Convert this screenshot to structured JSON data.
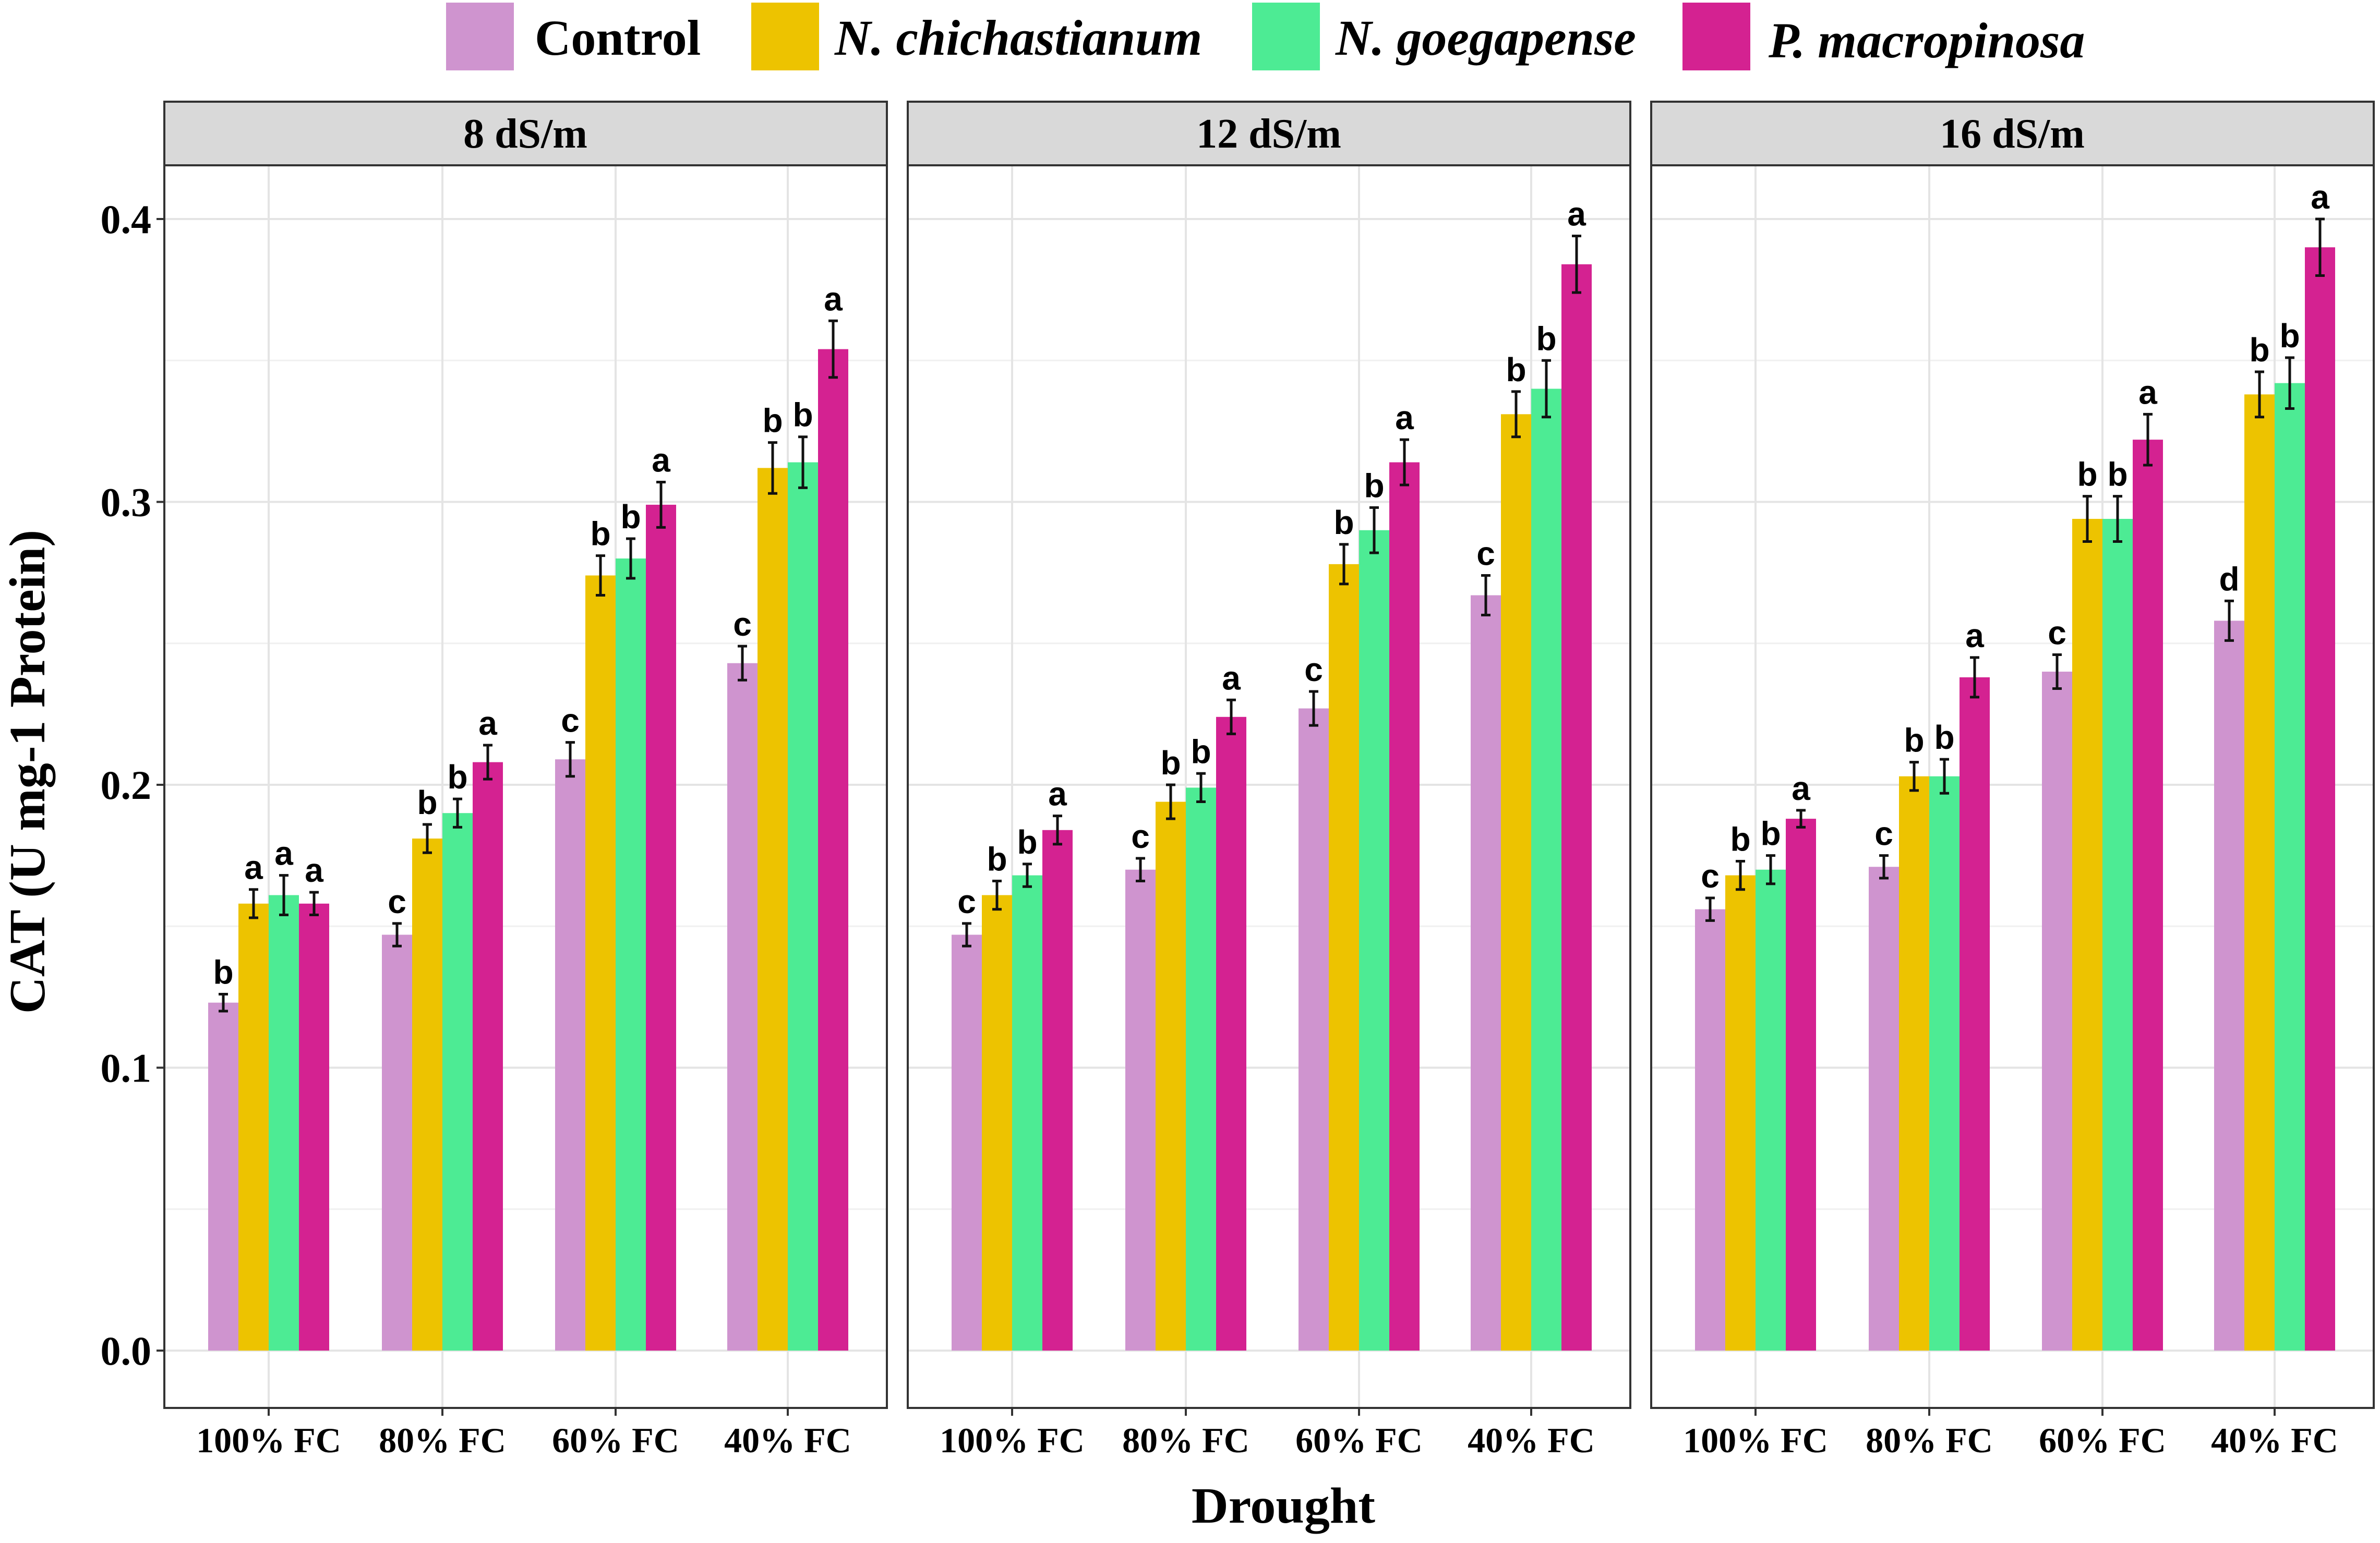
{
  "chart_data": {
    "type": "bar",
    "ylabel": "CAT (U mg-1 Protein)",
    "xlabel": "Drought",
    "ylim": [
      0.0,
      0.42
    ],
    "yticks": [
      "0.0",
      "0.1",
      "0.2",
      "0.3",
      "0.4"
    ],
    "ytick_values": [
      0.0,
      0.1,
      0.2,
      0.3,
      0.4
    ],
    "legend_position": "top",
    "grid": true,
    "colors": [
      "#cf94cf",
      "#edc300",
      "#4deb94",
      "#d42291"
    ],
    "series": [
      {
        "name": "Control",
        "italic": false
      },
      {
        "name": "N. chichastianum",
        "italic": true
      },
      {
        "name": "N. goegapense",
        "italic": true
      },
      {
        "name": "P. macropinosa",
        "italic": true
      }
    ],
    "categories": [
      "100% FC",
      "80% FC",
      "60% FC",
      "40% FC"
    ],
    "panels": [
      {
        "title": "8 dS/m",
        "values": [
          [
            0.123,
            0.158,
            0.161,
            0.158
          ],
          [
            0.147,
            0.181,
            0.19,
            0.208
          ],
          [
            0.209,
            0.274,
            0.28,
            0.299
          ],
          [
            0.243,
            0.312,
            0.314,
            0.354
          ]
        ],
        "errors": [
          [
            0.003,
            0.005,
            0.007,
            0.004
          ],
          [
            0.004,
            0.005,
            0.005,
            0.006
          ],
          [
            0.006,
            0.007,
            0.007,
            0.008
          ],
          [
            0.006,
            0.009,
            0.009,
            0.01
          ]
        ],
        "labels": [
          [
            "b",
            "a",
            "a",
            "a"
          ],
          [
            "c",
            "b",
            "b",
            "a"
          ],
          [
            "c",
            "b",
            "b",
            "a"
          ],
          [
            "c",
            "b",
            "b",
            "a"
          ]
        ]
      },
      {
        "title": "12 dS/m",
        "values": [
          [
            0.147,
            0.161,
            0.168,
            0.184
          ],
          [
            0.17,
            0.194,
            0.199,
            0.224
          ],
          [
            0.227,
            0.278,
            0.29,
            0.314
          ],
          [
            0.267,
            0.331,
            0.34,
            0.384
          ]
        ],
        "errors": [
          [
            0.004,
            0.005,
            0.004,
            0.005
          ],
          [
            0.004,
            0.006,
            0.005,
            0.006
          ],
          [
            0.006,
            0.007,
            0.008,
            0.008
          ],
          [
            0.007,
            0.008,
            0.01,
            0.01
          ]
        ],
        "labels": [
          [
            "c",
            "b",
            "b",
            "a"
          ],
          [
            "c",
            "b",
            "b",
            "a"
          ],
          [
            "c",
            "b",
            "b",
            "a"
          ],
          [
            "c",
            "b",
            "b",
            "a"
          ]
        ]
      },
      {
        "title": "16 dS/m",
        "values": [
          [
            0.156,
            0.168,
            0.17,
            0.188
          ],
          [
            0.171,
            0.203,
            0.203,
            0.238
          ],
          [
            0.24,
            0.294,
            0.294,
            0.322
          ],
          [
            0.258,
            0.338,
            0.342,
            0.39
          ]
        ],
        "errors": [
          [
            0.004,
            0.005,
            0.005,
            0.003
          ],
          [
            0.004,
            0.005,
            0.006,
            0.007
          ],
          [
            0.006,
            0.008,
            0.008,
            0.009
          ],
          [
            0.007,
            0.008,
            0.009,
            0.01
          ]
        ],
        "labels": [
          [
            "c",
            "b",
            "b",
            "a"
          ],
          [
            "c",
            "b",
            "b",
            "a"
          ],
          [
            "c",
            "b",
            "b",
            "a"
          ],
          [
            "d",
            "b",
            "b",
            "a"
          ]
        ]
      }
    ]
  }
}
